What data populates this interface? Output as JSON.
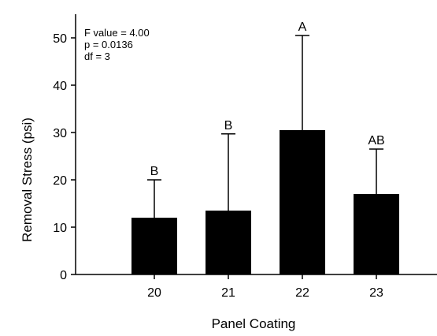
{
  "chart_data": {
    "type": "bar",
    "categories": [
      "20",
      "21",
      "22",
      "23"
    ],
    "series": [
      {
        "values": [
          12,
          13.5,
          30.5,
          17
        ]
      }
    ],
    "error_bars_upper": [
      20,
      29.7,
      50.5,
      26.5
    ],
    "group_letters": [
      "B",
      "B",
      "A",
      "AB"
    ],
    "xlabel": "Panel Coating",
    "ylabel": "Removal Stress (psi)",
    "ylim": [
      0,
      55
    ],
    "yticks": [
      0,
      10,
      20,
      30,
      40,
      50
    ],
    "bar_color": "#000000",
    "grid": false,
    "stats": {
      "f_value": "F value = 4.00",
      "p_value": "p = 0.0136",
      "df": "df = 3"
    }
  }
}
